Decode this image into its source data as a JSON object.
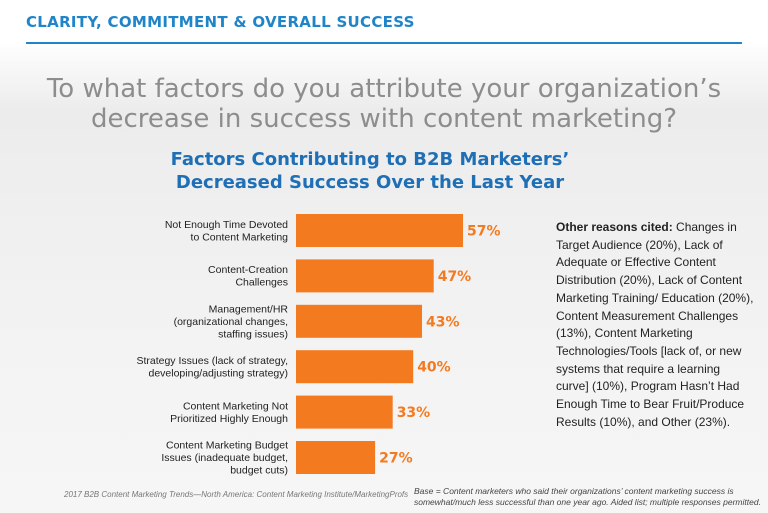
{
  "header": {
    "title": "CLARITY, COMMITMENT & OVERALL SUCCESS"
  },
  "question": "To what factors do you attribute your organization’s decrease in success with content marketing?",
  "chart_title_line1": "Factors Contributing to B2B Marketers’",
  "chart_title_line2": "Decreased Success Over the Last Year",
  "colors": {
    "bar": "#f47a20",
    "accent": "#1f84c8",
    "title": "#1f6fb6"
  },
  "chart_data": {
    "type": "bar",
    "orientation": "horizontal",
    "title": "Factors Contributing to B2B Marketers’ Decreased Success Over the Last Year",
    "categories": [
      [
        "Not Enough Time Devoted",
        "to Content Marketing"
      ],
      [
        "Content-Creation",
        "Challenges"
      ],
      [
        "Management/HR",
        "(organizational changes,",
        "staffing issues)"
      ],
      [
        "Strategy Issues (lack of strategy,",
        "developing/adjusting strategy)"
      ],
      [
        "Content Marketing Not",
        "Prioritized Highly Enough"
      ],
      [
        "Content Marketing Budget",
        "Issues (inadequate budget,",
        "budget cuts)"
      ]
    ],
    "values": [
      57,
      47,
      43,
      40,
      33,
      27
    ],
    "value_labels": [
      "57%",
      "47%",
      "43%",
      "40%",
      "33%",
      "27%"
    ],
    "xlim": [
      0,
      100
    ],
    "grid": false,
    "legend": false
  },
  "other_reasons": {
    "heading": "Other reasons cited:",
    "text": "Changes in Target Audience (20%), Lack of Adequate or Effective Content Distribution (20%), Lack of Content Marketing Training/ Education (20%), Content Measurement Challenges (13%), Content Marketing Technologies/Tools [lack of, or new systems that require a learning curve] (10%), Program Hasn’t Had Enough Time to Bear Fruit/Produce Results (10%), and Other (23%)."
  },
  "source": "2017 B2B Content Marketing Trends—North America: Content Marketing Institute/MarketingProfs",
  "base_note": "Base = Content marketers who said their organizations’ content marketing success is somewhat/much less successful than one year ago. Aided list; multiple responses permitted."
}
